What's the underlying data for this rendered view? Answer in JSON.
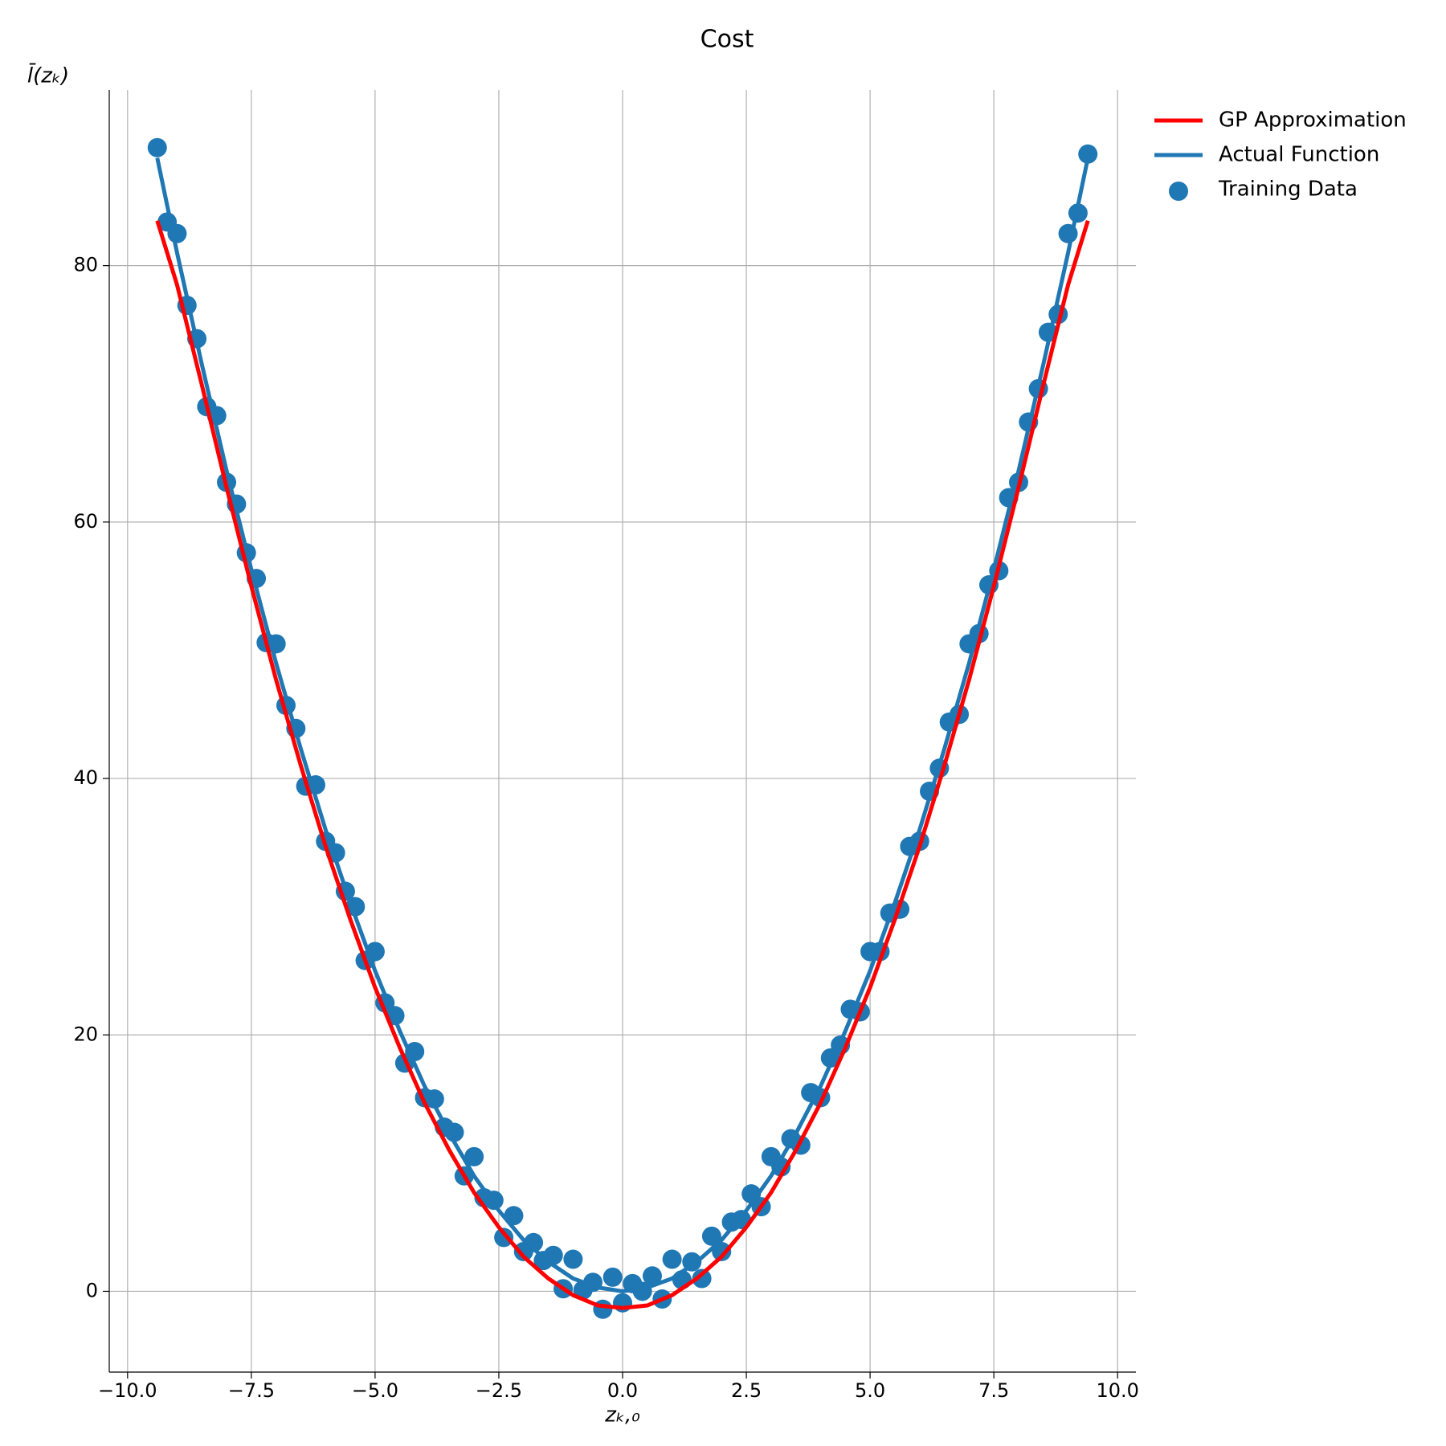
{
  "chart_data": {
    "type": "line",
    "title": "Cost",
    "x_label": "zₖ,₀",
    "y_label": "l̄(zₖ)",
    "xlim": [
      -10.37,
      10.37
    ],
    "ylim": [
      -6.3,
      93.7
    ],
    "xticks": [
      {
        "value": -10,
        "label": "−10.0"
      },
      {
        "value": -7.5,
        "label": "−7.5"
      },
      {
        "value": -5,
        "label": "−5.0"
      },
      {
        "value": -2.5,
        "label": "−2.5"
      },
      {
        "value": 0,
        "label": "0.0"
      },
      {
        "value": 2.5,
        "label": "2.5"
      },
      {
        "value": 5,
        "label": "5.0"
      },
      {
        "value": 7.5,
        "label": "7.5"
      },
      {
        "value": 10,
        "label": "10.0"
      }
    ],
    "yticks": [
      0,
      20,
      40,
      60,
      80
    ],
    "grid": true,
    "legend": "outside upper right",
    "series": [
      {
        "name": "Actual Function",
        "type": "line",
        "color": "#1f77b4",
        "x": [
          -9.4,
          -9,
          -8.5,
          -8,
          -7.5,
          -7,
          -6.5,
          -6,
          -5.5,
          -5,
          -4.5,
          -4,
          -3.5,
          -3,
          -2.5,
          -2,
          -1.5,
          -1,
          -0.5,
          0,
          0.5,
          1,
          1.5,
          2,
          2.5,
          3,
          3.5,
          4,
          4.5,
          5,
          5.5,
          6,
          6.5,
          7,
          7.5,
          8,
          8.5,
          9,
          9.4
        ],
        "values": [
          88.4,
          81,
          72.3,
          64,
          56.3,
          49,
          42.3,
          36,
          30.3,
          25,
          20.3,
          16,
          12.3,
          9,
          6.3,
          4,
          2.3,
          1,
          0.3,
          0,
          0.3,
          1,
          2.3,
          4,
          6.3,
          9,
          12.3,
          16,
          20.3,
          25,
          30.3,
          36,
          42.3,
          49,
          56.3,
          64,
          72.3,
          81,
          88.4
        ]
      },
      {
        "name": "GP Approximation",
        "type": "line",
        "color": "#ff0000",
        "x": [
          -9.4,
          -9,
          -8.5,
          -8,
          -7.5,
          -7,
          -6.5,
          -6,
          -5.5,
          -5,
          -4.5,
          -4,
          -3.5,
          -3,
          -2.5,
          -2,
          -1.5,
          -1,
          -0.5,
          0,
          0.5,
          1,
          1.5,
          2,
          2.5,
          3,
          3.5,
          4,
          4.5,
          5,
          5.5,
          6,
          6.5,
          7,
          7.5,
          8,
          8.5,
          9,
          9.4
        ],
        "values": [
          83.5,
          78.5,
          70.7,
          62.7,
          55,
          47.7,
          41,
          34.7,
          29,
          23.7,
          19,
          14.7,
          11,
          7.7,
          5,
          2.7,
          1,
          -0.3,
          -1.1,
          -1.3,
          -1.1,
          -0.3,
          1,
          2.7,
          5,
          7.7,
          11,
          14.7,
          19,
          23.7,
          29,
          34.7,
          41,
          47.7,
          55,
          62.7,
          70.7,
          78.5,
          83.5
        ]
      },
      {
        "name": "Training Data",
        "type": "scatter",
        "color": "#1f77b4",
        "x": [
          -9.4,
          -9.2,
          -9,
          -8.8,
          -8.6,
          -8.4,
          -8.2,
          -8,
          -7.8,
          -7.6,
          -7.4,
          -7.2,
          -7,
          -6.8,
          -6.6,
          -6.4,
          -6.2,
          -6,
          -5.8,
          -5.6,
          -5.4,
          -5.2,
          -5,
          -4.8,
          -4.6,
          -4.4,
          -4.2,
          -4,
          -3.8,
          -3.6,
          -3.4,
          -3.2,
          -3,
          -2.8,
          -2.6,
          -2.4,
          -2.2,
          -2,
          -1.8,
          -1.6,
          -1.4,
          -1.2,
          -1,
          -0.8,
          -0.6,
          -0.4,
          -0.2,
          0,
          0.2,
          0.4,
          0.6,
          0.8,
          1,
          1.2,
          1.4,
          1.6,
          1.8,
          2,
          2.2,
          2.4,
          2.6,
          2.8,
          3,
          3.2,
          3.4,
          3.6,
          3.8,
          4,
          4.2,
          4.4,
          4.6,
          4.8,
          5,
          5.2,
          5.4,
          5.6,
          5.8,
          6,
          6.2,
          6.4,
          6.6,
          6.8,
          7,
          7.2,
          7.4,
          7.6,
          7.8,
          8,
          8.2,
          8.4,
          8.6,
          8.8,
          9,
          9.2,
          9.4
        ],
        "values": [
          89.2,
          83.4,
          82.5,
          76.9,
          74.3,
          69,
          68.3,
          63.1,
          61.4,
          57.6,
          55.6,
          50.6,
          50.5,
          45.7,
          43.9,
          39.4,
          39.5,
          35.1,
          34.2,
          31.2,
          30,
          25.8,
          26.5,
          22.5,
          21.5,
          17.8,
          18.7,
          15.1,
          15,
          12.8,
          12.4,
          9,
          10.5,
          7.3,
          7.1,
          4.2,
          5.9,
          3.1,
          3.8,
          2.4,
          2.8,
          0.2,
          2.5,
          0.1,
          0.7,
          -1.4,
          1.1,
          -0.9,
          0.6,
          0,
          1.2,
          -0.6,
          2.5,
          0.9,
          2.3,
          1,
          4.3,
          3.1,
          5.4,
          5.6,
          7.6,
          6.6,
          10.5,
          9.7,
          11.9,
          11.4,
          15.5,
          15.1,
          18.2,
          19.2,
          22,
          21.8,
          26.5,
          26.5,
          29.5,
          29.8,
          34.7,
          35.1,
          39,
          40.8,
          44.4,
          45,
          50.5,
          51.3,
          55.1,
          56.2,
          61.9,
          63.1,
          67.8,
          70.4,
          74.8,
          76.2,
          82.5,
          84.1,
          88.7
        ]
      }
    ]
  }
}
